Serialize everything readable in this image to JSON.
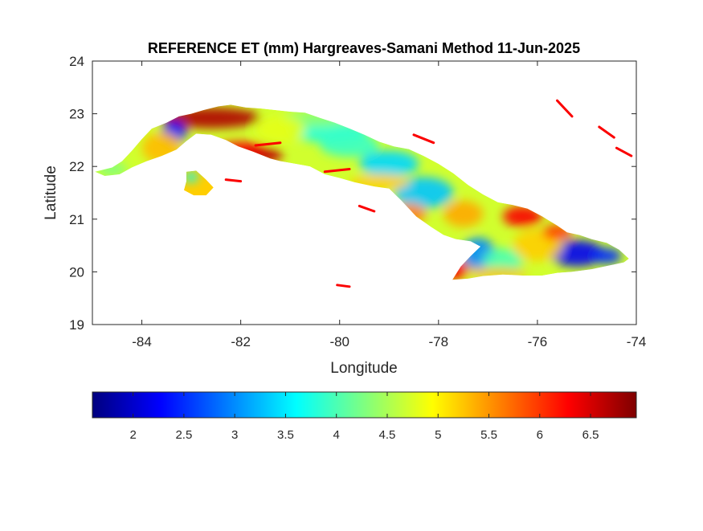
{
  "chart_data": {
    "type": "heatmap",
    "title": "REFERENCE ET (mm) Hargreaves-Samani Method  11-Jun-2025",
    "xlabel": "Longitude",
    "ylabel": "Latitude",
    "xlim": [
      -85,
      -74
    ],
    "ylim": [
      19,
      24
    ],
    "x_ticks": [
      -84,
      -82,
      -80,
      -78,
      -76,
      -74
    ],
    "y_ticks": [
      19,
      20,
      21,
      22,
      23,
      24
    ],
    "colorbar": {
      "colormap": "jet",
      "range": [
        1.6,
        6.95
      ],
      "ticks": [
        2,
        2.5,
        3,
        3.5,
        4,
        4.5,
        5,
        5.5,
        6,
        6.5
      ],
      "placement": "bottom"
    },
    "grid": false,
    "land_outline": [
      [
        -84.95,
        21.9
      ],
      [
        -84.6,
        21.98
      ],
      [
        -84.4,
        22.1
      ],
      [
        -84.2,
        22.3
      ],
      [
        -84.0,
        22.52
      ],
      [
        -83.8,
        22.72
      ],
      [
        -83.5,
        22.83
      ],
      [
        -83.25,
        22.95
      ],
      [
        -83.0,
        23.0
      ],
      [
        -82.75,
        23.07
      ],
      [
        -82.45,
        23.14
      ],
      [
        -82.2,
        23.17
      ],
      [
        -81.9,
        23.12
      ],
      [
        -81.6,
        23.1
      ],
      [
        -81.3,
        23.07
      ],
      [
        -81.0,
        23.04
      ],
      [
        -80.7,
        23.02
      ],
      [
        -80.4,
        22.92
      ],
      [
        -80.1,
        22.83
      ],
      [
        -79.8,
        22.72
      ],
      [
        -79.5,
        22.6
      ],
      [
        -79.2,
        22.47
      ],
      [
        -78.9,
        22.38
      ],
      [
        -78.6,
        22.33
      ],
      [
        -78.3,
        22.2
      ],
      [
        -78.0,
        22.05
      ],
      [
        -77.7,
        21.87
      ],
      [
        -77.4,
        21.65
      ],
      [
        -77.1,
        21.47
      ],
      [
        -76.8,
        21.32
      ],
      [
        -76.5,
        21.27
      ],
      [
        -76.2,
        21.2
      ],
      [
        -75.9,
        21.05
      ],
      [
        -75.6,
        20.88
      ],
      [
        -75.4,
        20.75
      ],
      [
        -75.15,
        20.7
      ],
      [
        -74.9,
        20.62
      ],
      [
        -74.6,
        20.55
      ],
      [
        -74.35,
        20.42
      ],
      [
        -74.15,
        20.25
      ],
      [
        -74.25,
        20.18
      ],
      [
        -74.55,
        20.12
      ],
      [
        -74.9,
        20.05
      ],
      [
        -75.3,
        20.0
      ],
      [
        -75.6,
        19.98
      ],
      [
        -75.9,
        19.93
      ],
      [
        -76.3,
        19.93
      ],
      [
        -76.7,
        19.95
      ],
      [
        -77.1,
        19.92
      ],
      [
        -77.4,
        19.87
      ],
      [
        -77.72,
        19.85
      ],
      [
        -77.55,
        20.1
      ],
      [
        -77.35,
        20.3
      ],
      [
        -77.15,
        20.48
      ],
      [
        -77.35,
        20.58
      ],
      [
        -77.65,
        20.62
      ],
      [
        -77.9,
        20.7
      ],
      [
        -78.15,
        20.85
      ],
      [
        -78.45,
        21.05
      ],
      [
        -78.75,
        21.35
      ],
      [
        -79.0,
        21.58
      ],
      [
        -79.3,
        21.62
      ],
      [
        -79.7,
        21.7
      ],
      [
        -80.0,
        21.78
      ],
      [
        -80.3,
        21.85
      ],
      [
        -80.6,
        22.0
      ],
      [
        -80.9,
        22.05
      ],
      [
        -81.2,
        22.1
      ],
      [
        -81.4,
        22.15
      ],
      [
        -81.75,
        22.28
      ],
      [
        -82.05,
        22.38
      ],
      [
        -82.3,
        22.5
      ],
      [
        -82.6,
        22.6
      ],
      [
        -82.9,
        22.62
      ],
      [
        -83.1,
        22.48
      ],
      [
        -83.3,
        22.32
      ],
      [
        -83.6,
        22.2
      ],
      [
        -83.9,
        22.1
      ],
      [
        -84.2,
        21.98
      ],
      [
        -84.45,
        21.85
      ],
      [
        -84.75,
        21.82
      ]
    ],
    "isla_juventud_outline": [
      [
        -83.1,
        21.9
      ],
      [
        -82.9,
        21.92
      ],
      [
        -82.7,
        21.75
      ],
      [
        -82.55,
        21.6
      ],
      [
        -82.7,
        21.45
      ],
      [
        -82.95,
        21.45
      ],
      [
        -83.15,
        21.55
      ],
      [
        -83.1,
        21.72
      ]
    ],
    "islets": [
      [
        -75.6,
        23.25,
        -75.3,
        22.95
      ],
      [
        -74.75,
        22.75,
        -74.45,
        22.55
      ],
      [
        -74.4,
        22.35,
        -74.1,
        22.2
      ],
      [
        -79.6,
        21.25,
        -79.3,
        21.15
      ],
      [
        -80.3,
        21.9,
        -79.8,
        21.95
      ],
      [
        -81.7,
        22.4,
        -81.2,
        22.45
      ],
      [
        -78.5,
        22.6,
        -78.1,
        22.45
      ],
      [
        -80.05,
        19.75,
        -79.8,
        19.72
      ],
      [
        -82.3,
        21.75,
        -82.0,
        21.72
      ]
    ],
    "et_blobs": [
      [
        -82.6,
        22.92,
        1.0,
        0.2,
        6.7
      ],
      [
        -81.6,
        22.22,
        0.45,
        0.16,
        6.6
      ],
      [
        -82.0,
        22.35,
        0.5,
        0.12,
        6.3
      ],
      [
        -83.35,
        22.65,
        0.25,
        0.22,
        2.3
      ],
      [
        -83.6,
        22.35,
        0.4,
        0.3,
        5.3
      ],
      [
        -84.6,
        21.95,
        0.3,
        0.15,
        4.3
      ],
      [
        -83.0,
        21.8,
        0.14,
        0.1,
        3.6
      ],
      [
        -80.2,
        22.65,
        0.8,
        0.2,
        3.8
      ],
      [
        -79.8,
        22.4,
        0.6,
        0.22,
        3.9
      ],
      [
        -79.0,
        22.05,
        0.6,
        0.25,
        3.4
      ],
      [
        -78.3,
        21.5,
        0.6,
        0.3,
        3.3
      ],
      [
        -77.5,
        21.1,
        0.4,
        0.25,
        5.4
      ],
      [
        -77.2,
        20.35,
        0.35,
        0.3,
        3.0
      ],
      [
        -76.7,
        20.2,
        0.4,
        0.25,
        4.0
      ],
      [
        -75.2,
        20.35,
        0.55,
        0.25,
        2.2
      ],
      [
        -74.6,
        20.3,
        0.3,
        0.15,
        2.5
      ],
      [
        -76.0,
        20.5,
        0.5,
        0.3,
        5.2
      ],
      [
        -76.3,
        21.05,
        0.4,
        0.2,
        6.3
      ],
      [
        -75.6,
        20.75,
        0.3,
        0.15,
        6.0
      ],
      [
        -78.6,
        21.1,
        0.35,
        0.2,
        5.6
      ],
      [
        -80.5,
        22.9,
        0.7,
        0.15,
        4.3
      ],
      [
        -77.7,
        20.05,
        0.3,
        0.2,
        6.3
      ],
      [
        -81.2,
        22.7,
        0.5,
        0.25,
        4.8
      ],
      [
        -79.2,
        21.7,
        0.6,
        0.15,
        5.2
      ],
      [
        -76.8,
        19.98,
        0.6,
        0.1,
        5.3
      ]
    ]
  }
}
